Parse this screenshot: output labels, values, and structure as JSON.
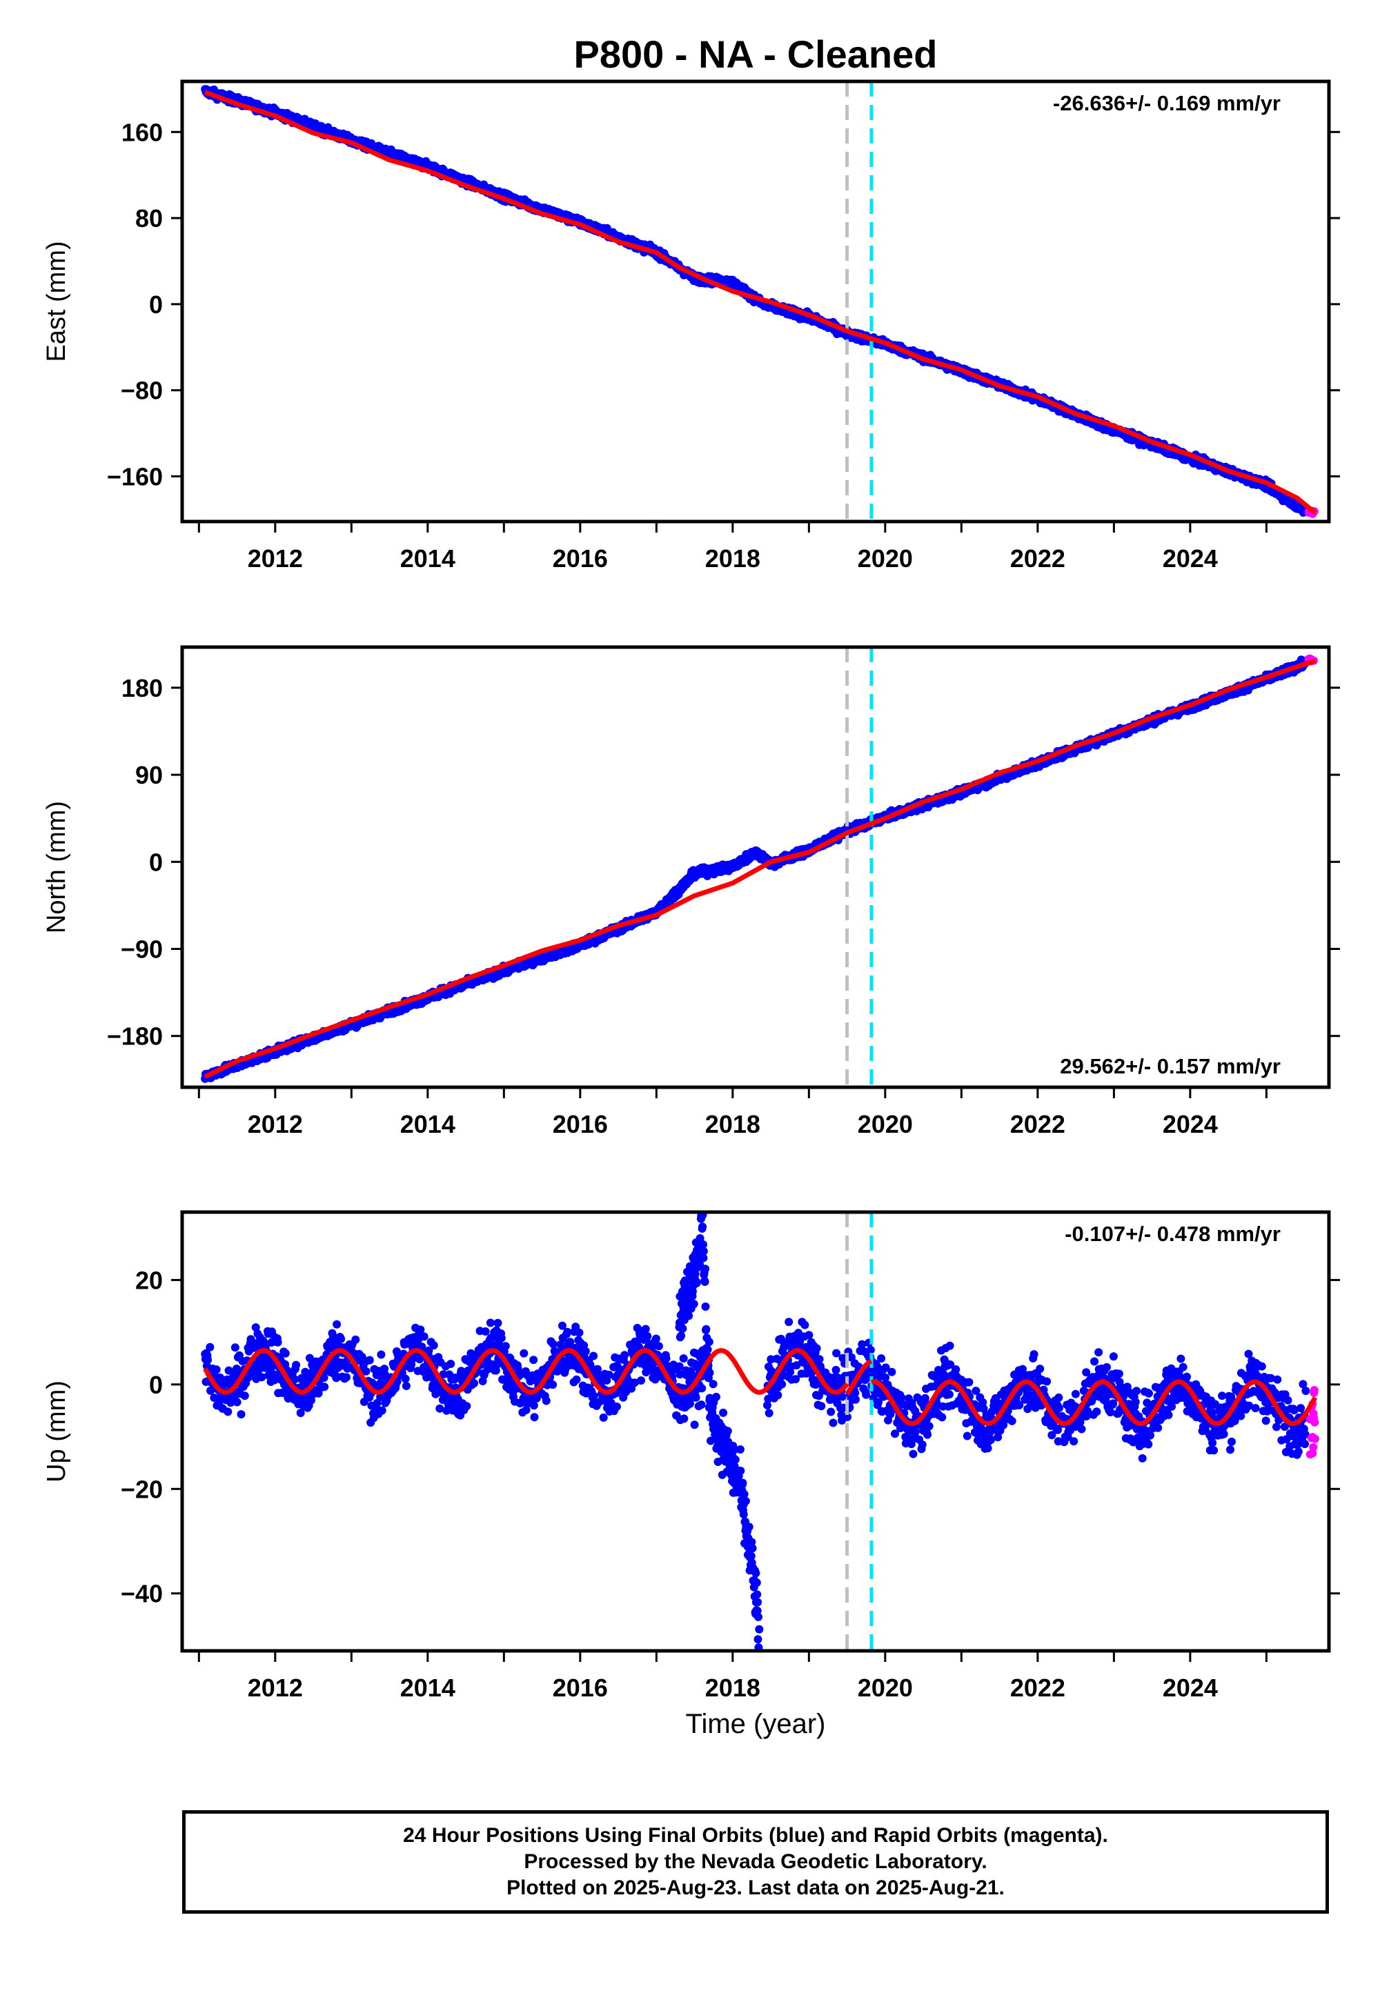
{
  "title": "P800  - NA - Cleaned",
  "xlabel": "Time (year)",
  "x_ticks": [
    "2012",
    "2014",
    "2016",
    "2018",
    "2020",
    "2022",
    "2024"
  ],
  "colors": {
    "final_orbits": "#0000ff",
    "rapid_orbits": "#ff00ff",
    "model_fit": "#ff0000",
    "equipment_change_gray": "#c0c0c0",
    "event_cyan": "#00e5ff"
  },
  "footer": {
    "line1": "24 Hour Positions Using Final Orbits (blue) and Rapid Orbits (magenta).",
    "line2": "Processed by the Nevada Geodetic Laboratory.",
    "line3": "Plotted on 2025-Aug-23. Last data on 2025-Aug-21."
  },
  "chart_data": [
    {
      "type": "scatter",
      "component": "East",
      "ylabel": "East (mm)",
      "rate_label": "-26.636+/- 0.169 mm/yr",
      "rate_position": "top-right",
      "xlim": [
        2010.78,
        2025.82
      ],
      "ylim": [
        -202,
        207
      ],
      "y_ticks": [
        160,
        80,
        0,
        -80,
        -160
      ],
      "y_tick_labels": [
        "160",
        "80",
        "0",
        "−80",
        "−160"
      ],
      "vertical_lines": [
        {
          "x": 2019.5,
          "color": "gray",
          "style": "dashed"
        },
        {
          "x": 2019.82,
          "color": "cyan",
          "style": "dashed"
        }
      ],
      "final_orbits_trend": [
        [
          2011.08,
          198
        ],
        [
          2012.0,
          178
        ],
        [
          2013.0,
          152
        ],
        [
          2014.0,
          128
        ],
        [
          2015.0,
          100
        ],
        [
          2016.0,
          76
        ],
        [
          2017.0,
          48
        ],
        [
          2017.5,
          24
        ],
        [
          2018.0,
          20
        ],
        [
          2018.4,
          0
        ],
        [
          2019.0,
          -12
        ],
        [
          2019.5,
          -27
        ],
        [
          2020.0,
          -37
        ],
        [
          2021.0,
          -62
        ],
        [
          2022.0,
          -88
        ],
        [
          2023.0,
          -117
        ],
        [
          2024.0,
          -143
        ],
        [
          2025.0,
          -168
        ],
        [
          2025.5,
          -192
        ]
      ],
      "rapid_orbits_range": {
        "x": [
          2025.55,
          2025.64
        ],
        "y": [
          -195,
          -192
        ]
      },
      "model_fit": [
        [
          2011.08,
          197
        ],
        [
          2011.5,
          186
        ],
        [
          2012.0,
          175
        ],
        [
          2012.5,
          159
        ],
        [
          2013.0,
          150
        ],
        [
          2013.5,
          134
        ],
        [
          2014.0,
          124
        ],
        [
          2014.5,
          110
        ],
        [
          2015.0,
          98
        ],
        [
          2015.5,
          84
        ],
        [
          2016.0,
          74
        ],
        [
          2016.5,
          58
        ],
        [
          2017.0,
          48
        ],
        [
          2017.3,
          34
        ],
        [
          2017.6,
          24
        ],
        [
          2018.0,
          12
        ],
        [
          2018.5,
          2
        ],
        [
          2019.0,
          -10
        ],
        [
          2019.5,
          -25
        ],
        [
          2020.0,
          -36
        ],
        [
          2020.5,
          -51
        ],
        [
          2021.0,
          -61
        ],
        [
          2021.5,
          -76
        ],
        [
          2022.0,
          -86
        ],
        [
          2022.5,
          -102
        ],
        [
          2023.0,
          -113
        ],
        [
          2023.5,
          -128
        ],
        [
          2024.0,
          -140
        ],
        [
          2024.5,
          -155
        ],
        [
          2025.0,
          -166
        ],
        [
          2025.4,
          -180
        ],
        [
          2025.64,
          -194
        ]
      ]
    },
    {
      "type": "scatter",
      "component": "North",
      "ylabel": "North (mm)",
      "rate_label": "29.562+/- 0.157 mm/yr",
      "rate_position": "bottom-right",
      "xlim": [
        2010.78,
        2025.82
      ],
      "ylim": [
        -233,
        222
      ],
      "y_ticks": [
        180,
        90,
        0,
        -90,
        -180
      ],
      "y_tick_labels": [
        "180",
        "90",
        "0",
        "−90",
        "−180"
      ],
      "vertical_lines": [
        {
          "x": 2019.5,
          "color": "gray",
          "style": "dashed"
        },
        {
          "x": 2019.82,
          "color": "cyan",
          "style": "dashed"
        }
      ],
      "final_orbits_trend": [
        [
          2011.08,
          -222
        ],
        [
          2012.0,
          -196
        ],
        [
          2013.0,
          -168
        ],
        [
          2014.0,
          -140
        ],
        [
          2015.0,
          -112
        ],
        [
          2016.0,
          -86
        ],
        [
          2017.0,
          -52
        ],
        [
          2017.5,
          -12
        ],
        [
          2018.0,
          -5
        ],
        [
          2018.3,
          10
        ],
        [
          2018.5,
          -2
        ],
        [
          2019.0,
          12
        ],
        [
          2019.5,
          32
        ],
        [
          2020.0,
          46
        ],
        [
          2021.0,
          72
        ],
        [
          2022.0,
          102
        ],
        [
          2023.0,
          132
        ],
        [
          2024.0,
          160
        ],
        [
          2025.0,
          189
        ],
        [
          2025.5,
          205
        ]
      ],
      "rapid_orbits_range": {
        "x": [
          2025.55,
          2025.64
        ],
        "y": [
          207,
          210
        ]
      },
      "model_fit": [
        [
          2011.08,
          -222
        ],
        [
          2011.5,
          -206
        ],
        [
          2012.0,
          -193
        ],
        [
          2012.5,
          -178
        ],
        [
          2013.0,
          -164
        ],
        [
          2013.5,
          -150
        ],
        [
          2014.0,
          -137
        ],
        [
          2014.5,
          -121
        ],
        [
          2015.0,
          -107
        ],
        [
          2015.5,
          -92
        ],
        [
          2016.0,
          -81
        ],
        [
          2016.5,
          -66
        ],
        [
          2017.0,
          -55
        ],
        [
          2017.5,
          -35
        ],
        [
          2018.0,
          -22
        ],
        [
          2018.5,
          0
        ],
        [
          2019.0,
          10
        ],
        [
          2019.5,
          30
        ],
        [
          2020.0,
          45
        ],
        [
          2020.5,
          62
        ],
        [
          2021.0,
          75
        ],
        [
          2021.5,
          92
        ],
        [
          2022.0,
          104
        ],
        [
          2022.5,
          120
        ],
        [
          2023.0,
          133
        ],
        [
          2023.5,
          149
        ],
        [
          2024.0,
          162
        ],
        [
          2024.5,
          178
        ],
        [
          2025.0,
          191
        ],
        [
          2025.64,
          208
        ]
      ]
    },
    {
      "type": "scatter",
      "component": "Up",
      "ylabel": "Up (mm)",
      "rate_label": "-0.107+/- 0.478 mm/yr",
      "rate_position": "top-right",
      "xlim": [
        2010.78,
        2025.82
      ],
      "ylim": [
        -51,
        33
      ],
      "y_ticks": [
        20,
        0,
        -20,
        -40
      ],
      "y_tick_labels": [
        "20",
        "0",
        "−20",
        "−40"
      ],
      "vertical_lines": [
        {
          "x": 2019.5,
          "color": "gray",
          "style": "dashed"
        },
        {
          "x": 2019.82,
          "color": "cyan",
          "style": "dashed"
        }
      ],
      "final_orbits_scatter": {
        "mean_mm": 0,
        "spread_mm": 5
      },
      "transient_2017_2018": [
        [
          2017.3,
          12
        ],
        [
          2017.55,
          25
        ],
        [
          2017.6,
          31
        ],
        [
          2017.7,
          -5
        ],
        [
          2017.9,
          -12
        ],
        [
          2018.1,
          -20
        ],
        [
          2018.3,
          -40
        ],
        [
          2018.35,
          -49
        ]
      ],
      "rapid_orbits_range": {
        "x": [
          2025.55,
          2025.64
        ],
        "y": [
          -14,
          -1
        ]
      },
      "model_fit_annual": {
        "amplitude_mm": 4,
        "phase_peak_year_fraction": 0.85,
        "segments": [
          {
            "from": 2011.08,
            "to": 2019.5,
            "offset_mm": 2.5
          },
          {
            "from": 2019.5,
            "to": 2019.82,
            "offset_mm": 0.5
          },
          {
            "from": 2019.82,
            "to": 2025.64,
            "offset_mm": -3.5
          }
        ]
      }
    }
  ]
}
